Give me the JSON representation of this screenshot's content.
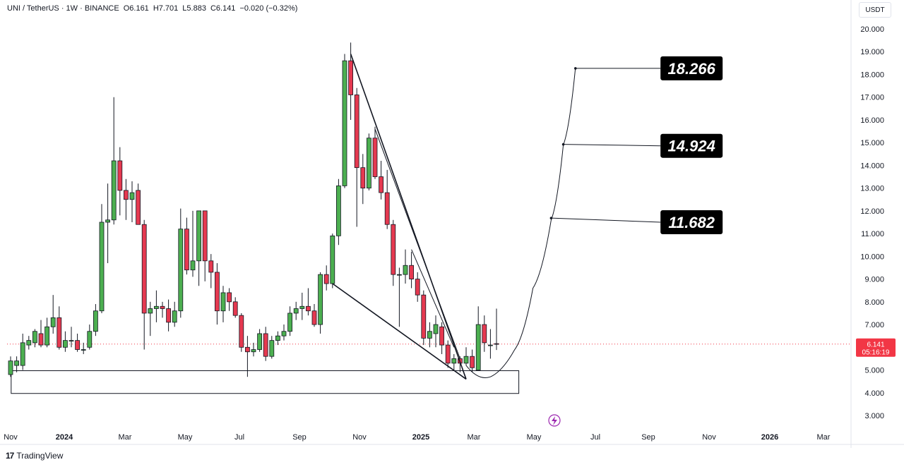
{
  "header": {
    "symbol": "UNI / TetherUS · 1W · BINANCE",
    "open": "O6.161",
    "high": "H7.701",
    "low": "L5.883",
    "close": "C6.141",
    "change": "−0.020 (−0.32%)"
  },
  "currency_label": "USDT",
  "brand": {
    "logo": "17",
    "name": "TradingView"
  },
  "price_tag": {
    "price": "6.141",
    "countdown": "05:16:19",
    "color": "#f23645"
  },
  "colors": {
    "up": "#4caf50",
    "down": "#e53950",
    "wick": "#131722",
    "line": "#131722"
  },
  "targets": [
    "18.266",
    "14.924",
    "11.682"
  ],
  "chart_data": {
    "type": "candlestick",
    "symbol": "UNI / TetherUS",
    "interval": "1W",
    "exchange": "BINANCE",
    "y_axis": {
      "ylim": [
        2.5,
        20.6
      ],
      "ticks": [
        "3.000",
        "4.000",
        "5.000",
        "6.000",
        "7.000",
        "8.000",
        "9.000",
        "10.000",
        "11.000",
        "12.000",
        "13.000",
        "14.000",
        "15.000",
        "16.000",
        "17.000",
        "18.000",
        "19.000",
        "20.000"
      ]
    },
    "x_axis": {
      "ticks": [
        "Nov",
        "2024",
        "Mar",
        "May",
        "Jul",
        "Sep",
        "Nov",
        "2025",
        "Mar",
        "May",
        "Jul",
        "Sep",
        "Nov",
        "2026",
        "Mar"
      ]
    },
    "start_date": "2023-10-30",
    "candles": [
      {
        "date": "2023-10-30",
        "o": 4.8,
        "h": 5.6,
        "l": 4.7,
        "c": 5.4
      },
      {
        "date": "2023-11-06",
        "o": 5.2,
        "h": 5.6,
        "l": 4.9,
        "c": 5.4
      },
      {
        "date": "2023-11-13",
        "o": 5.2,
        "h": 6.6,
        "l": 5.0,
        "c": 6.2
      },
      {
        "date": "2023-11-20",
        "o": 6.1,
        "h": 6.5,
        "l": 5.9,
        "c": 6.3
      },
      {
        "date": "2023-11-27",
        "o": 6.2,
        "h": 6.8,
        "l": 6.0,
        "c": 6.7
      },
      {
        "date": "2023-12-04",
        "o": 6.6,
        "h": 7.2,
        "l": 6.0,
        "c": 6.1
      },
      {
        "date": "2023-12-11",
        "o": 6.1,
        "h": 7.3,
        "l": 6.0,
        "c": 6.9
      },
      {
        "date": "2023-12-18",
        "o": 6.9,
        "h": 8.3,
        "l": 6.6,
        "c": 7.3
      },
      {
        "date": "2023-12-25",
        "o": 7.3,
        "h": 7.8,
        "l": 5.9,
        "c": 6.0
      },
      {
        "date": "2024-01-01",
        "o": 6.0,
        "h": 6.7,
        "l": 5.8,
        "c": 6.3
      },
      {
        "date": "2024-01-08",
        "o": 6.3,
        "h": 6.9,
        "l": 6.0,
        "c": 6.3
      },
      {
        "date": "2024-01-15",
        "o": 6.3,
        "h": 6.6,
        "l": 5.8,
        "c": 5.9
      },
      {
        "date": "2024-01-22",
        "o": 5.9,
        "h": 6.2,
        "l": 5.7,
        "c": 5.9
      },
      {
        "date": "2024-01-29",
        "o": 6.0,
        "h": 7.0,
        "l": 5.9,
        "c": 6.7
      },
      {
        "date": "2024-02-05",
        "o": 6.7,
        "h": 7.9,
        "l": 6.5,
        "c": 7.6
      },
      {
        "date": "2024-02-12",
        "o": 7.6,
        "h": 12.3,
        "l": 7.5,
        "c": 11.5
      },
      {
        "date": "2024-02-19",
        "o": 11.5,
        "h": 13.2,
        "l": 9.7,
        "c": 11.6
      },
      {
        "date": "2024-02-26",
        "o": 11.6,
        "h": 17.0,
        "l": 11.4,
        "c": 14.2
      },
      {
        "date": "2024-03-04",
        "o": 14.2,
        "h": 14.8,
        "l": 11.8,
        "c": 12.9
      },
      {
        "date": "2024-03-11",
        "o": 12.9,
        "h": 13.4,
        "l": 11.6,
        "c": 12.5
      },
      {
        "date": "2024-03-18",
        "o": 12.5,
        "h": 13.3,
        "l": 11.5,
        "c": 12.8
      },
      {
        "date": "2024-03-25",
        "o": 12.9,
        "h": 13.2,
        "l": 11.5,
        "c": 11.4
      },
      {
        "date": "2024-04-01",
        "o": 11.4,
        "h": 11.6,
        "l": 5.9,
        "c": 7.5
      },
      {
        "date": "2024-04-08",
        "o": 7.5,
        "h": 8.0,
        "l": 6.5,
        "c": 7.7
      },
      {
        "date": "2024-04-15",
        "o": 7.7,
        "h": 8.5,
        "l": 7.1,
        "c": 7.8
      },
      {
        "date": "2024-04-22",
        "o": 7.8,
        "h": 8.0,
        "l": 7.3,
        "c": 7.7
      },
      {
        "date": "2024-04-29",
        "o": 7.7,
        "h": 8.1,
        "l": 6.7,
        "c": 7.1
      },
      {
        "date": "2024-05-06",
        "o": 7.1,
        "h": 8.0,
        "l": 6.9,
        "c": 7.6
      },
      {
        "date": "2024-05-13",
        "o": 7.6,
        "h": 12.1,
        "l": 7.3,
        "c": 11.2
      },
      {
        "date": "2024-05-20",
        "o": 11.2,
        "h": 11.7,
        "l": 9.2,
        "c": 9.4
      },
      {
        "date": "2024-05-27",
        "o": 9.4,
        "h": 12.0,
        "l": 9.1,
        "c": 9.8
      },
      {
        "date": "2024-06-03",
        "o": 9.8,
        "h": 12.0,
        "l": 8.7,
        "c": 12.0
      },
      {
        "date": "2024-06-10",
        "o": 12.0,
        "h": 12.0,
        "l": 8.9,
        "c": 9.8
      },
      {
        "date": "2024-06-17",
        "o": 9.8,
        "h": 10.1,
        "l": 8.6,
        "c": 9.3
      },
      {
        "date": "2024-06-24",
        "o": 9.3,
        "h": 9.7,
        "l": 7.0,
        "c": 7.6
      },
      {
        "date": "2024-07-01",
        "o": 7.6,
        "h": 8.7,
        "l": 7.1,
        "c": 8.4
      },
      {
        "date": "2024-07-08",
        "o": 8.4,
        "h": 8.6,
        "l": 7.6,
        "c": 8.0
      },
      {
        "date": "2024-07-15",
        "o": 8.0,
        "h": 8.2,
        "l": 7.3,
        "c": 7.4
      },
      {
        "date": "2024-07-22",
        "o": 7.4,
        "h": 7.5,
        "l": 5.8,
        "c": 6.0
      },
      {
        "date": "2024-07-29",
        "o": 6.0,
        "h": 6.5,
        "l": 4.7,
        "c": 5.8
      },
      {
        "date": "2024-08-05",
        "o": 5.8,
        "h": 6.2,
        "l": 5.6,
        "c": 5.9
      },
      {
        "date": "2024-08-12",
        "o": 5.9,
        "h": 6.8,
        "l": 5.8,
        "c": 6.6
      },
      {
        "date": "2024-08-19",
        "o": 6.6,
        "h": 6.9,
        "l": 5.4,
        "c": 5.6
      },
      {
        "date": "2024-08-26",
        "o": 5.6,
        "h": 6.5,
        "l": 5.5,
        "c": 6.3
      },
      {
        "date": "2024-09-02",
        "o": 6.3,
        "h": 6.7,
        "l": 6.1,
        "c": 6.5
      },
      {
        "date": "2024-09-09",
        "o": 6.5,
        "h": 7.0,
        "l": 6.3,
        "c": 6.7
      },
      {
        "date": "2024-09-16",
        "o": 6.7,
        "h": 7.8,
        "l": 6.5,
        "c": 7.5
      },
      {
        "date": "2024-09-23",
        "o": 7.5,
        "h": 8.0,
        "l": 7.2,
        "c": 7.7
      },
      {
        "date": "2024-09-30",
        "o": 7.7,
        "h": 8.4,
        "l": 7.2,
        "c": 7.8
      },
      {
        "date": "2024-10-07",
        "o": 7.8,
        "h": 8.6,
        "l": 7.4,
        "c": 7.6
      },
      {
        "date": "2024-10-14",
        "o": 7.6,
        "h": 7.9,
        "l": 6.9,
        "c": 7.0
      },
      {
        "date": "2024-10-21",
        "o": 7.0,
        "h": 9.3,
        "l": 6.6,
        "c": 9.2
      },
      {
        "date": "2024-10-28",
        "o": 9.2,
        "h": 9.6,
        "l": 8.5,
        "c": 8.8
      },
      {
        "date": "2024-11-04",
        "o": 8.8,
        "h": 11.0,
        "l": 8.6,
        "c": 10.9
      },
      {
        "date": "2024-11-11",
        "o": 10.9,
        "h": 13.4,
        "l": 10.5,
        "c": 13.1
      },
      {
        "date": "2024-11-18",
        "o": 13.1,
        "h": 18.9,
        "l": 13.0,
        "c": 18.6
      },
      {
        "date": "2024-11-25",
        "o": 18.6,
        "h": 19.4,
        "l": 16.0,
        "c": 17.1
      },
      {
        "date": "2024-12-02",
        "o": 17.1,
        "h": 17.4,
        "l": 11.3,
        "c": 13.9
      },
      {
        "date": "2024-12-09",
        "o": 13.9,
        "h": 14.5,
        "l": 12.3,
        "c": 13.0
      },
      {
        "date": "2024-12-16",
        "o": 13.0,
        "h": 15.4,
        "l": 12.9,
        "c": 15.2
      },
      {
        "date": "2024-12-23",
        "o": 15.2,
        "h": 15.7,
        "l": 13.4,
        "c": 13.5
      },
      {
        "date": "2024-12-30",
        "o": 13.5,
        "h": 14.2,
        "l": 12.5,
        "c": 12.8
      },
      {
        "date": "2025-01-06",
        "o": 12.8,
        "h": 13.8,
        "l": 11.2,
        "c": 11.4
      },
      {
        "date": "2025-01-13",
        "o": 11.4,
        "h": 11.6,
        "l": 8.7,
        "c": 9.2
      },
      {
        "date": "2025-01-20",
        "o": 9.2,
        "h": 9.5,
        "l": 6.9,
        "c": 9.2
      },
      {
        "date": "2025-01-27",
        "o": 9.2,
        "h": 10.3,
        "l": 8.8,
        "c": 9.6
      },
      {
        "date": "2025-02-03",
        "o": 9.6,
        "h": 10.2,
        "l": 8.6,
        "c": 9.0
      },
      {
        "date": "2025-02-10",
        "o": 9.0,
        "h": 9.3,
        "l": 8.0,
        "c": 8.3
      },
      {
        "date": "2025-02-17",
        "o": 8.3,
        "h": 8.5,
        "l": 6.1,
        "c": 6.4
      },
      {
        "date": "2025-02-24",
        "o": 6.4,
        "h": 7.1,
        "l": 6.0,
        "c": 6.7
      },
      {
        "date": "2025-03-03",
        "o": 6.6,
        "h": 7.4,
        "l": 6.0,
        "c": 7.0
      },
      {
        "date": "2025-03-10",
        "o": 6.9,
        "h": 7.1,
        "l": 5.7,
        "c": 6.1
      },
      {
        "date": "2025-03-17",
        "o": 6.1,
        "h": 6.3,
        "l": 5.1,
        "c": 5.3
      },
      {
        "date": "2025-03-24",
        "o": 5.3,
        "h": 5.7,
        "l": 5.0,
        "c": 5.5
      },
      {
        "date": "2025-03-31",
        "o": 5.5,
        "h": 5.6,
        "l": 4.9,
        "c": 5.3
      },
      {
        "date": "2025-04-07",
        "o": 5.3,
        "h": 6.0,
        "l": 5.2,
        "c": 5.6
      },
      {
        "date": "2025-04-14",
        "o": 5.6,
        "h": 5.9,
        "l": 4.9,
        "c": 5.1
      },
      {
        "date": "2025-04-21",
        "o": 5.0,
        "h": 7.8,
        "l": 5.0,
        "c": 7.0
      },
      {
        "date": "2025-04-28",
        "o": 7.0,
        "h": 7.4,
        "l": 5.8,
        "c": 6.2
      },
      {
        "date": "2025-05-05",
        "o": 6.1,
        "h": 6.8,
        "l": 5.5,
        "c": 6.1
      },
      {
        "date": "2025-05-12",
        "o": 6.161,
        "h": 7.701,
        "l": 5.883,
        "c": 6.141
      }
    ],
    "zone_box": {
      "from": "2023-11-20",
      "to": "2025-05-19",
      "top": 4.97,
      "bottom": 3.97
    },
    "trendlines": [
      {
        "from": {
          "date": "2024-11-25",
          "price": 18.9
        },
        "to": {
          "date": "2025-04-07",
          "price": 4.6
        }
      },
      {
        "from": {
          "date": "2024-11-04",
          "price": 8.8
        },
        "to": {
          "date": "2025-04-07",
          "price": 4.6
        }
      },
      {
        "from": {
          "date": "2024-12-23",
          "price": 15.6
        },
        "to": {
          "date": "2025-03-31",
          "price": 5.5
        }
      },
      {
        "from": {
          "date": "2025-02-03",
          "price": 10.3
        },
        "to": {
          "date": "2025-03-24",
          "price": 6.0
        }
      }
    ],
    "projection_curve": [
      {
        "date": "2025-04-07",
        "price": 5.2
      },
      {
        "date": "2025-05-05",
        "price": 4.7
      },
      {
        "date": "2025-06-02",
        "price": 5.9
      },
      {
        "date": "2025-06-23",
        "price": 8.6
      },
      {
        "date": "2025-07-14",
        "price": 11.6
      },
      {
        "date": "2025-07-28",
        "price": 14.9
      },
      {
        "date": "2025-08-11",
        "price": 18.3
      }
    ],
    "targets": [
      {
        "label": "18.266",
        "from": {
          "date": "2025-08-11",
          "price": 18.266
        },
        "to": {
          "date": "2025-11-17",
          "price": 18.266
        }
      },
      {
        "label": "14.924",
        "from": {
          "date": "2025-07-28",
          "price": 14.924
        },
        "to": {
          "date": "2025-11-17",
          "price": 14.86
        }
      },
      {
        "label": "11.682",
        "from": {
          "date": "2025-07-14",
          "price": 11.682
        },
        "to": {
          "date": "2025-11-17",
          "price": 11.5
        }
      }
    ],
    "current_price": 6.141,
    "grid": false,
    "legend": "none"
  }
}
